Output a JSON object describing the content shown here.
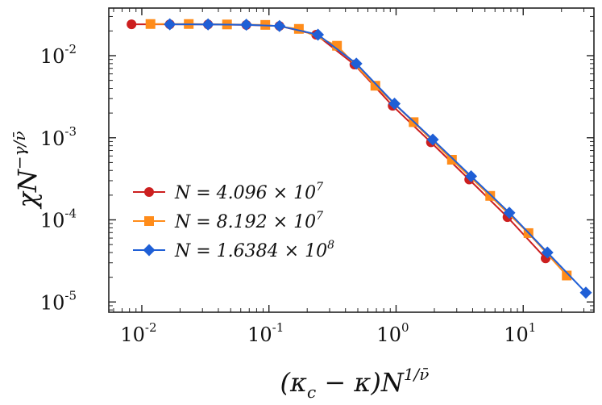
{
  "chart_data": {
    "type": "line",
    "xscale": "log",
    "yscale": "log",
    "xlim": [
      0.0055,
      36
    ],
    "ylim": [
      7.5e-06,
      0.038
    ],
    "xlabel": "(κc − κ)N^(1/ν̄)",
    "ylabel": "χN^(−γ/ν̄)",
    "x_ticks": [
      {
        "value": 0.01,
        "base": "10",
        "exp": "-2"
      },
      {
        "value": 0.1,
        "base": "10",
        "exp": "-1"
      },
      {
        "value": 1,
        "base": "10",
        "exp": "0"
      },
      {
        "value": 10,
        "base": "10",
        "exp": "1"
      }
    ],
    "y_ticks": [
      {
        "value": 0.01,
        "base": "10",
        "exp": "-2"
      },
      {
        "value": 0.001,
        "base": "10",
        "exp": "-3"
      },
      {
        "value": 0.0001,
        "base": "10",
        "exp": "-4"
      },
      {
        "value": 1e-05,
        "base": "10",
        "exp": "-5"
      }
    ],
    "legend_position": "center-left",
    "series": [
      {
        "name": "N = 4.096 × 10^7",
        "label_main": "N = 4.096 × 10",
        "label_exp": "7",
        "color": "#cc1f1f",
        "marker": "circle",
        "x": [
          0.0083,
          0.0166,
          0.0332,
          0.0664,
          0.121,
          0.235,
          0.47,
          0.94,
          1.88,
          3.76,
          7.52,
          15.0
        ],
        "y": [
          0.0241,
          0.0241,
          0.024,
          0.0237,
          0.023,
          0.018,
          0.0078,
          0.00245,
          0.00088,
          0.00031,
          0.000108,
          3.4e-05
        ]
      },
      {
        "name": "N = 8.192 × 10^7",
        "label_main": "N = 8.192 × 10",
        "label_exp": "7",
        "color": "#ff8c1a",
        "marker": "square",
        "x": [
          0.0117,
          0.0234,
          0.0468,
          0.0936,
          0.172,
          0.343,
          0.687,
          1.375,
          2.75,
          5.5,
          11.0,
          22.0
        ],
        "y": [
          0.0243,
          0.0243,
          0.024,
          0.0237,
          0.0212,
          0.0132,
          0.0043,
          0.00155,
          0.00054,
          0.000196,
          6.9e-05,
          2.1e-05
        ]
      },
      {
        "name": "N = 1.6384 × 10^8",
        "label_main": "N = 1.6384 × 10",
        "label_exp": "8",
        "color": "#1f5fd6",
        "marker": "diamond",
        "x": [
          0.0166,
          0.0332,
          0.0664,
          0.121,
          0.243,
          0.487,
          0.972,
          1.945,
          3.89,
          7.78,
          15.5,
          31.1
        ],
        "y": [
          0.0241,
          0.024,
          0.0238,
          0.023,
          0.018,
          0.008,
          0.0026,
          0.00095,
          0.00034,
          0.000122,
          4e-05,
          1.3e-05
        ]
      }
    ]
  }
}
